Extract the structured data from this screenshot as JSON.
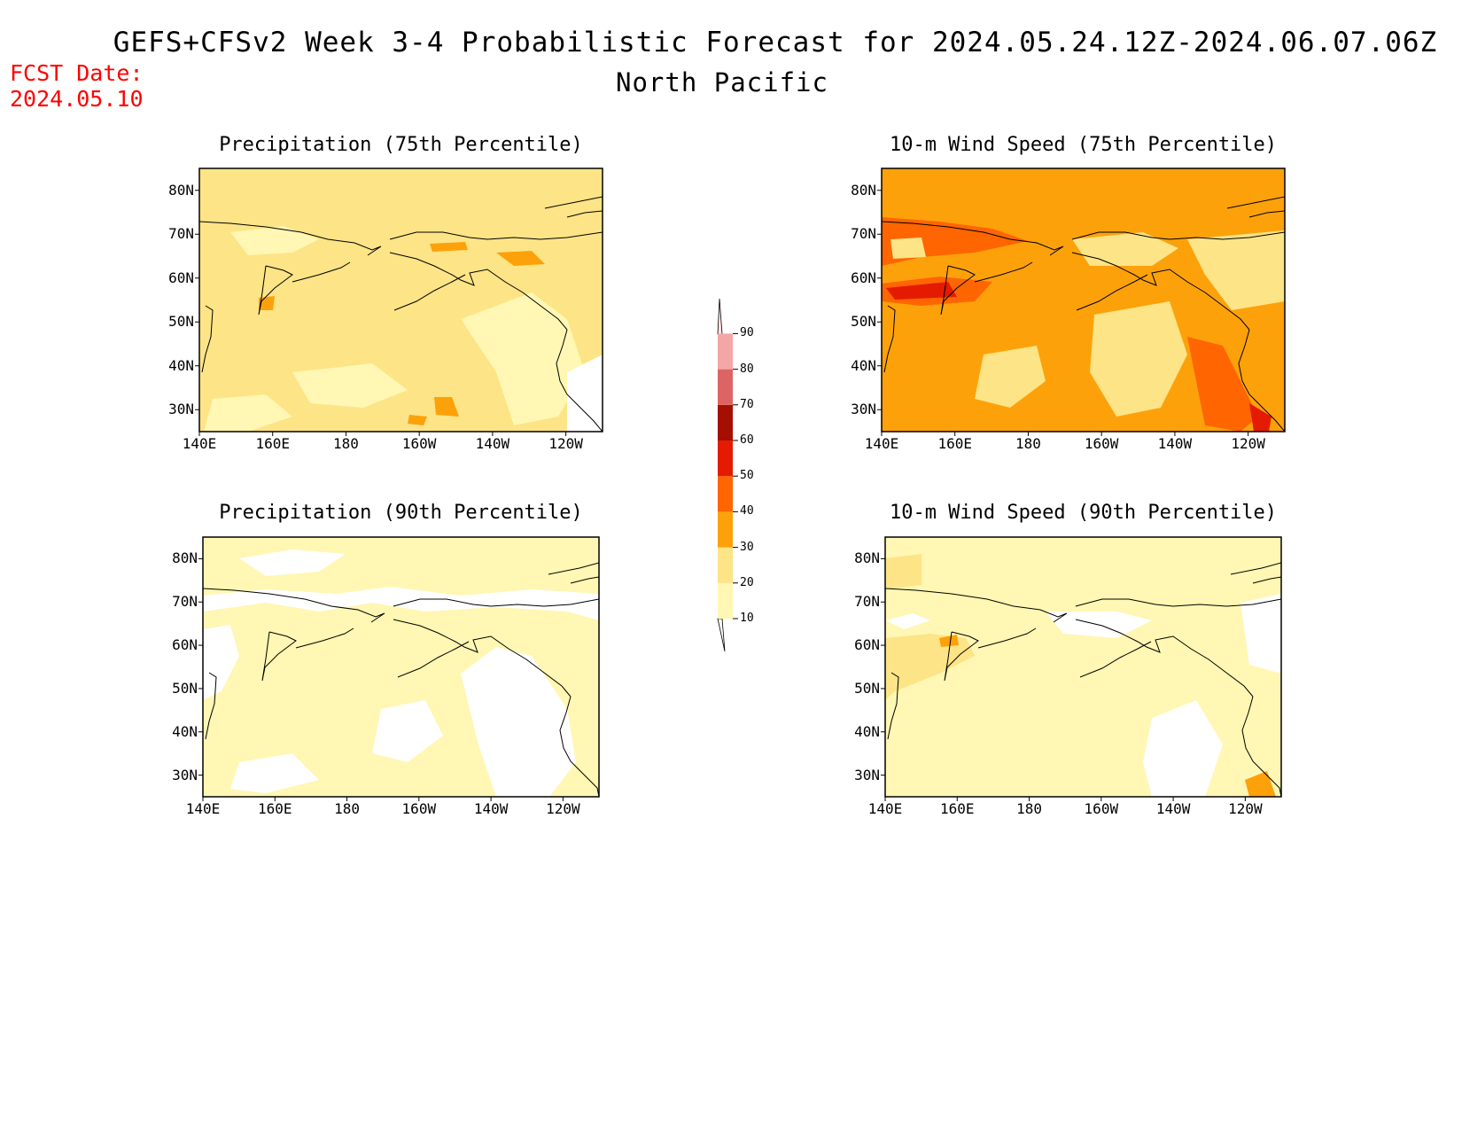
{
  "header": {
    "title": "GEFS+CFSv2 Week 3-4 Probabilistic Forecast for 2024.05.24.12Z-2024.06.07.06Z",
    "region": "North Pacific",
    "fcst_label": "FCST Date:",
    "fcst_date": "2024.05.10"
  },
  "colorbar": {
    "labels": [
      "10",
      "20",
      "30",
      "40",
      "50",
      "60",
      "70",
      "80",
      "90"
    ],
    "colors": [
      "#fff7b3",
      "#fde486",
      "#fda10a",
      "#ff6500",
      "#e41b00",
      "#a50f00",
      "#dc6464",
      "#f4a6a6",
      "#ffe4e4"
    ]
  },
  "chart_data": [
    {
      "type": "heatmap",
      "title": "Precipitation (75th Percentile)",
      "x_ticks": [
        "140E",
        "160E",
        "180",
        "160W",
        "140W",
        "120W"
      ],
      "y_ticks": [
        "30N",
        "40N",
        "50N",
        "60N",
        "70N",
        "80N"
      ],
      "lon_range": [
        140,
        250
      ],
      "lat_range": [
        25,
        85
      ],
      "dominant_category": "20-30",
      "regions": [
        {
          "desc": "broad background",
          "category": "20-30"
        },
        {
          "desc": "central Arctic band",
          "category": "20-30"
        },
        {
          "desc": "Gulf of Alaska / NE Pacific patches",
          "category": "10-20"
        },
        {
          "desc": "scattered small patches",
          "category": "30-40"
        }
      ]
    },
    {
      "type": "heatmap",
      "title": "10-m Wind Speed (75th Percentile)",
      "x_ticks": [
        "140E",
        "160E",
        "180",
        "160W",
        "140W",
        "120W"
      ],
      "y_ticks": [
        "30N",
        "40N",
        "50N",
        "60N",
        "70N",
        "80N"
      ],
      "lon_range": [
        140,
        250
      ],
      "lat_range": [
        25,
        85
      ],
      "dominant_category": "30-40",
      "regions": [
        {
          "desc": "broad background",
          "category": "30-40"
        },
        {
          "desc": "Bering Sea / Siberia / Alaska coast",
          "category": "40-50"
        },
        {
          "desc": "Kamchatka / Okhotsk",
          "category": "50-60"
        },
        {
          "desc": "interior Alaska / NE Pacific",
          "category": "20-30"
        }
      ]
    },
    {
      "type": "heatmap",
      "title": "Precipitation (90th Percentile)",
      "x_ticks": [
        "140E",
        "160E",
        "180",
        "160W",
        "140W",
        "120W"
      ],
      "y_ticks": [
        "30N",
        "40N",
        "50N",
        "60N",
        "70N",
        "80N"
      ],
      "lon_range": [
        140,
        250
      ],
      "lat_range": [
        25,
        85
      ],
      "dominant_category": "10-20",
      "regions": [
        {
          "desc": "broad background",
          "category": "10-20"
        },
        {
          "desc": "NE Pacific / Arctic coast",
          "category": "below 10"
        }
      ]
    },
    {
      "type": "heatmap",
      "title": "10-m Wind Speed (90th Percentile)",
      "x_ticks": [
        "140E",
        "160E",
        "180",
        "160W",
        "140W",
        "120W"
      ],
      "y_ticks": [
        "30N",
        "40N",
        "50N",
        "60N",
        "70N",
        "80N"
      ],
      "lon_range": [
        140,
        250
      ],
      "lat_range": [
        25,
        85
      ],
      "dominant_category": "10-20",
      "regions": [
        {
          "desc": "broad background",
          "category": "10-20"
        },
        {
          "desc": "Okhotsk / Kamchatka",
          "category": "20-30"
        },
        {
          "desc": "Alaska interior / subtropical NE Pacific",
          "category": "below 10"
        }
      ]
    }
  ]
}
